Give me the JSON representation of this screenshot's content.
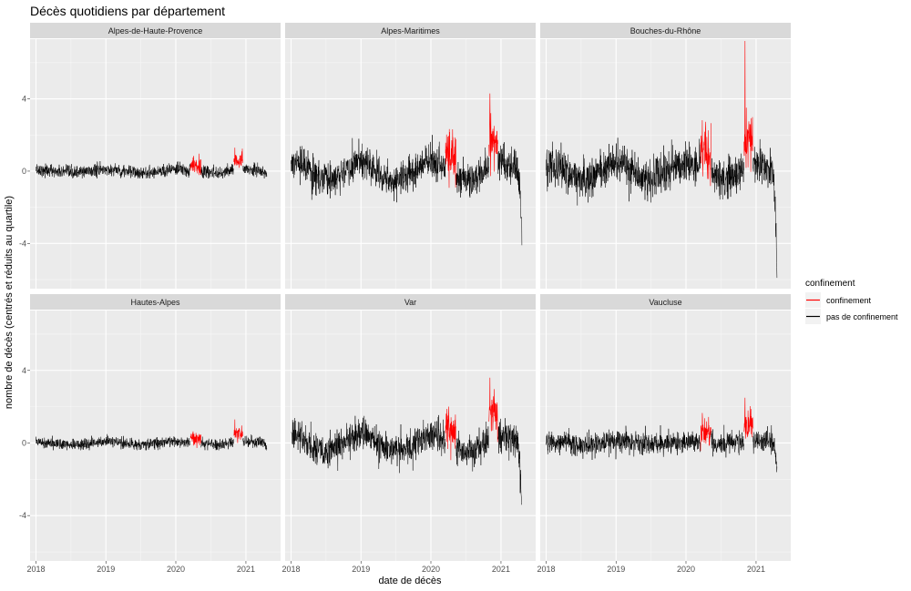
{
  "chart_data": {
    "type": "line",
    "title": "Décès quotidiens par département",
    "xlabel": "date de décès",
    "ylabel": "nombre de décès (centrés et réduits au quartile)",
    "x_ticks": [
      "2018",
      "2019",
      "2020",
      "2021"
    ],
    "x_range": [
      "2017-12-01",
      "2021-07-01"
    ],
    "y_ticks": [
      -4,
      0,
      4
    ],
    "ylim": [
      -6.5,
      7.3
    ],
    "grid": true,
    "facets": [
      "Alpes-de-Haute-Provence",
      "Alpes-Maritimes",
      "Bouches-du-Rhône",
      "Hautes-Alpes",
      "Var",
      "Vaucluse"
    ],
    "facet_layout": "2 rows x 3 columns",
    "legend": {
      "title": "confinement",
      "position": "right",
      "entries": [
        {
          "label": "confinement",
          "color": "#ff0000"
        },
        {
          "label": "pas de confinement",
          "color": "#000000"
        }
      ]
    },
    "lockdown_periods": [
      [
        "2020-03-17",
        "2020-05-11"
      ],
      [
        "2020-10-30",
        "2020-12-15"
      ]
    ],
    "series_profile": [
      {
        "facet": "Alpes-de-Haute-Provence",
        "noise_sd": 0.32,
        "min": -0.4,
        "max": 1.3,
        "end_drop": -0.3
      },
      {
        "facet": "Alpes-Maritimes",
        "noise_sd": 0.85,
        "min": -2.6,
        "max": 4.3,
        "end_drop": -4.1
      },
      {
        "facet": "Bouches-du-Rhône",
        "noise_sd": 1.0,
        "min": -5.9,
        "max": 7.2,
        "end_drop": -5.9
      },
      {
        "facet": "Hautes-Alpes",
        "noise_sd": 0.28,
        "min": -0.4,
        "max": 1.3,
        "end_drop": -0.3
      },
      {
        "facet": "Var",
        "noise_sd": 0.8,
        "min": -3.4,
        "max": 3.6,
        "end_drop": -3.4
      },
      {
        "facet": "Vaucluse",
        "noise_sd": 0.55,
        "min": -1.6,
        "max": 2.5,
        "end_drop": -1.3
      }
    ]
  }
}
